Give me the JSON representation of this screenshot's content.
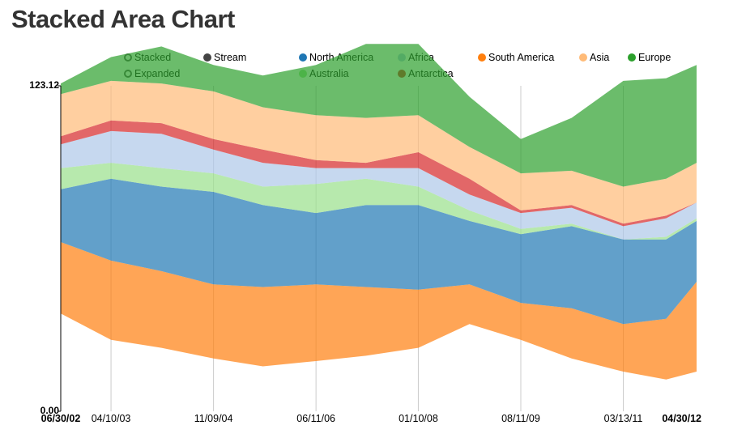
{
  "title": "Stacked Area Chart",
  "controls": [
    {
      "label": "Stacked",
      "selected": false
    },
    {
      "label": "Stream",
      "selected": true
    },
    {
      "label": "Expanded",
      "selected": false
    }
  ],
  "colors": {
    "North America": "#1f77b4",
    "Africa": "#aec7e8",
    "South America": "#ff7f0e",
    "Asia": "#ffbb78",
    "Europe": "#2ca02c",
    "Australia": "#98df8a",
    "Antarctica": "#d62728"
  },
  "chart_data": {
    "type": "area",
    "mode": "stream",
    "y_axis_labels": [
      "123.12",
      "0.00"
    ],
    "ylim": [
      0,
      123.12
    ],
    "grid": "vertical lines at x ticks",
    "legend_position": "top",
    "x_tick_labels": [
      "06/30/02",
      "04/10/03",
      "11/09/04",
      "06/11/06",
      "01/10/08",
      "08/11/09",
      "03/13/11",
      "04/30/12"
    ],
    "x_tick_dates": [
      "2002-06-30",
      "2003-04-10",
      "2004-11-09",
      "2006-06-11",
      "2008-01-10",
      "2009-08-11",
      "2011-03-13",
      "2012-04-30"
    ],
    "x_dates": [
      "2002-06-30",
      "2003-04-10",
      "2004-01-20",
      "2004-11-09",
      "2005-08-15",
      "2006-06-11",
      "2007-03-20",
      "2008-01-10",
      "2008-10-25",
      "2009-08-11",
      "2010-05-25",
      "2011-03-13",
      "2011-11-10",
      "2012-04-30"
    ],
    "baseline": [
      37,
      27,
      24,
      20,
      17,
      19,
      21,
      24,
      33,
      27,
      20,
      15,
      12,
      15
    ],
    "series": [
      {
        "name": "South America",
        "values": [
          27,
          30,
          29,
          28,
          30,
          29,
          26,
          22,
          15,
          14,
          19,
          18,
          23,
          34
        ]
      },
      {
        "name": "North America",
        "values": [
          20,
          31,
          32,
          35,
          31,
          27,
          31,
          32,
          24,
          26,
          31,
          32,
          30,
          23
        ]
      },
      {
        "name": "Australia",
        "values": [
          8,
          6,
          7,
          7,
          7,
          11,
          10,
          7,
          4,
          2,
          1,
          0,
          1,
          1
        ]
      },
      {
        "name": "Africa",
        "values": [
          9,
          12,
          13,
          9,
          9,
          6,
          4,
          7,
          6,
          6,
          6,
          5,
          7,
          6
        ]
      },
      {
        "name": "Antarctica",
        "values": [
          3,
          4,
          4,
          4,
          5,
          3,
          2,
          6,
          6,
          1,
          1,
          1,
          1,
          0
        ]
      },
      {
        "name": "Asia",
        "values": [
          16,
          15,
          15,
          18,
          16,
          17,
          17,
          14,
          12,
          14,
          13,
          14,
          14,
          15
        ]
      },
      {
        "name": "Europe",
        "values": [
          4,
          9,
          14,
          10,
          12,
          19,
          28,
          27,
          19,
          13,
          20,
          40,
          38,
          37
        ]
      }
    ],
    "legend_order": [
      "North America",
      "Africa",
      "South America",
      "Asia",
      "Europe",
      "Australia",
      "Antarctica"
    ]
  }
}
